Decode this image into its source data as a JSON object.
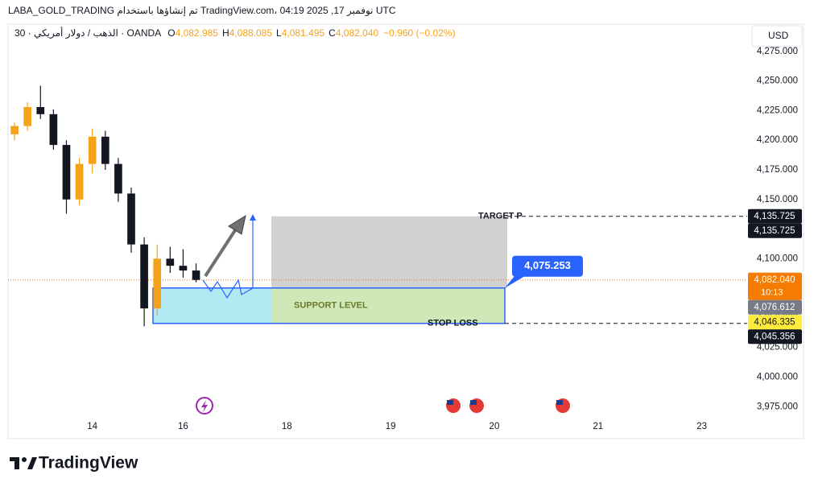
{
  "header": {
    "title": "LABA_GOLD_TRADING تم إنشاؤها باستخدام TradingView.com، نوفمبر 17, 2025 04:19 UTC",
    "symbol": "30 · الذهب / دولار أمريكي · OANDA",
    "ohlc": [
      {
        "key": "O",
        "value": "4,082.985"
      },
      {
        "key": "H",
        "value": "4,088.085"
      },
      {
        "key": "L",
        "value": "4,081.495"
      },
      {
        "key": "C",
        "value": "4,082.040"
      }
    ],
    "change": "−0.960 (−0.02%)",
    "currency": "USD",
    "logo": "TradingView"
  },
  "chart_data": {
    "type": "candlestick",
    "up_color": "#f5a21b",
    "down_color": "#131722",
    "categories": [
      null,
      null,
      null,
      null,
      null,
      null,
      "14",
      null,
      null,
      null,
      null,
      null,
      null,
      "16",
      null,
      null,
      null,
      null,
      null,
      null,
      null,
      "18",
      null,
      null,
      null,
      null,
      null,
      null,
      null,
      "19",
      null,
      null,
      null,
      null,
      null,
      null,
      null,
      "20",
      null,
      null,
      null,
      null,
      null,
      null,
      null,
      "21",
      null,
      null,
      null,
      null,
      null,
      null,
      null,
      "23",
      null,
      null,
      null
    ],
    "open": [
      4205,
      4212,
      4228,
      4222,
      4196,
      4150,
      4180,
      4203,
      4180,
      4155,
      4112,
      4058,
      4100,
      4094,
      4090,
      null,
      null,
      null,
      null,
      null,
      null,
      null,
      null,
      null,
      null,
      null,
      null,
      null,
      null,
      null,
      null,
      null,
      null,
      null,
      null,
      null,
      null,
      null,
      null,
      null,
      null,
      null,
      null,
      null,
      null,
      null,
      null,
      null,
      null,
      null,
      null,
      null,
      null,
      null,
      null,
      null,
      null
    ],
    "high": [
      4215,
      4232,
      4246,
      4226,
      4200,
      4185,
      4210,
      4208,
      4185,
      4160,
      4118,
      4112,
      4110,
      4108,
      4096,
      null,
      null,
      null,
      null,
      null,
      null,
      null,
      null,
      null,
      null,
      null,
      null,
      null,
      null,
      null,
      null,
      null,
      null,
      null,
      null,
      null,
      null,
      null,
      null,
      null,
      null,
      null,
      null,
      null,
      null,
      null,
      null,
      null,
      null,
      null,
      null,
      null,
      null,
      null,
      null,
      null,
      null
    ],
    "low": [
      4200,
      4208,
      4218,
      4192,
      4138,
      4145,
      4172,
      4175,
      4148,
      4105,
      4043,
      4052,
      4088,
      4084,
      4080,
      null,
      null,
      null,
      null,
      null,
      null,
      null,
      null,
      null,
      null,
      null,
      null,
      null,
      null,
      null,
      null,
      null,
      null,
      null,
      null,
      null,
      null,
      null,
      null,
      null,
      null,
      null,
      null,
      null,
      null,
      null,
      null,
      null,
      null,
      null,
      null,
      null,
      null,
      null,
      null,
      null,
      null
    ],
    "close": [
      4212,
      4228,
      4222,
      4196,
      4150,
      4180,
      4203,
      4180,
      4155,
      4112,
      4058,
      4100,
      4094,
      4090,
      4082.04,
      null,
      null,
      null,
      null,
      null,
      null,
      null,
      null,
      null,
      null,
      null,
      null,
      null,
      null,
      null,
      null,
      null,
      null,
      null,
      null,
      null,
      null,
      null,
      null,
      null,
      null,
      null,
      null,
      null,
      null,
      null,
      null,
      null,
      null,
      null,
      null,
      null,
      null,
      null,
      null,
      null,
      null
    ],
    "ylim": [
      3948,
      4298
    ],
    "yticks": [
      {
        "value": 3975,
        "label": "3,975.000"
      },
      {
        "value": 4000,
        "label": "4,000.000"
      },
      {
        "value": 4025,
        "label": "4,025.000"
      },
      {
        "value": 4050,
        "label": "4,050.000"
      },
      {
        "value": 4075,
        "label": "4,075.000"
      },
      {
        "value": 4100,
        "label": "4,100.000"
      },
      {
        "value": 4125,
        "label": "4,125.000"
      },
      {
        "value": 4150,
        "label": "4,150.000"
      },
      {
        "value": 4175,
        "label": "4,175.000"
      },
      {
        "value": 4200,
        "label": "4,200.000"
      },
      {
        "value": 4225,
        "label": "4,225.000"
      },
      {
        "value": 4250,
        "label": "4,250.000"
      },
      {
        "value": 4275,
        "label": "4,275.000"
      }
    ],
    "target": {
      "label": "TARGET P",
      "value": 4135.725
    },
    "entry": {
      "label": "4,075.253",
      "value": 4075.253
    },
    "stop": {
      "label": "STOP LOSS",
      "value": 4045.356
    },
    "support_label": "SUPPORT LEVEL",
    "price_labels": [
      {
        "value": 4135.725,
        "label": "4,135.725",
        "color": "#131722",
        "text_color": "#ffffff"
      },
      {
        "value": 4135.725,
        "label": "4,135.725",
        "color": "#131722",
        "text_color": "#ffffff"
      },
      {
        "value": 4082.04,
        "label": "4,082.040",
        "sublabel": "10:13",
        "color": "#f57c00",
        "text_color": "#ffffff"
      },
      {
        "value": 4076.612,
        "label": "4,076.612",
        "color": "#787b86",
        "text_color": "#ffffff"
      },
      {
        "value": 4046.335,
        "label": "4,046.335",
        "color": "#ffeb3b",
        "text_color": "#131722"
      },
      {
        "value": 4045.356,
        "label": "4,045.356",
        "color": "#131722",
        "text_color": "#ffffff"
      }
    ]
  }
}
